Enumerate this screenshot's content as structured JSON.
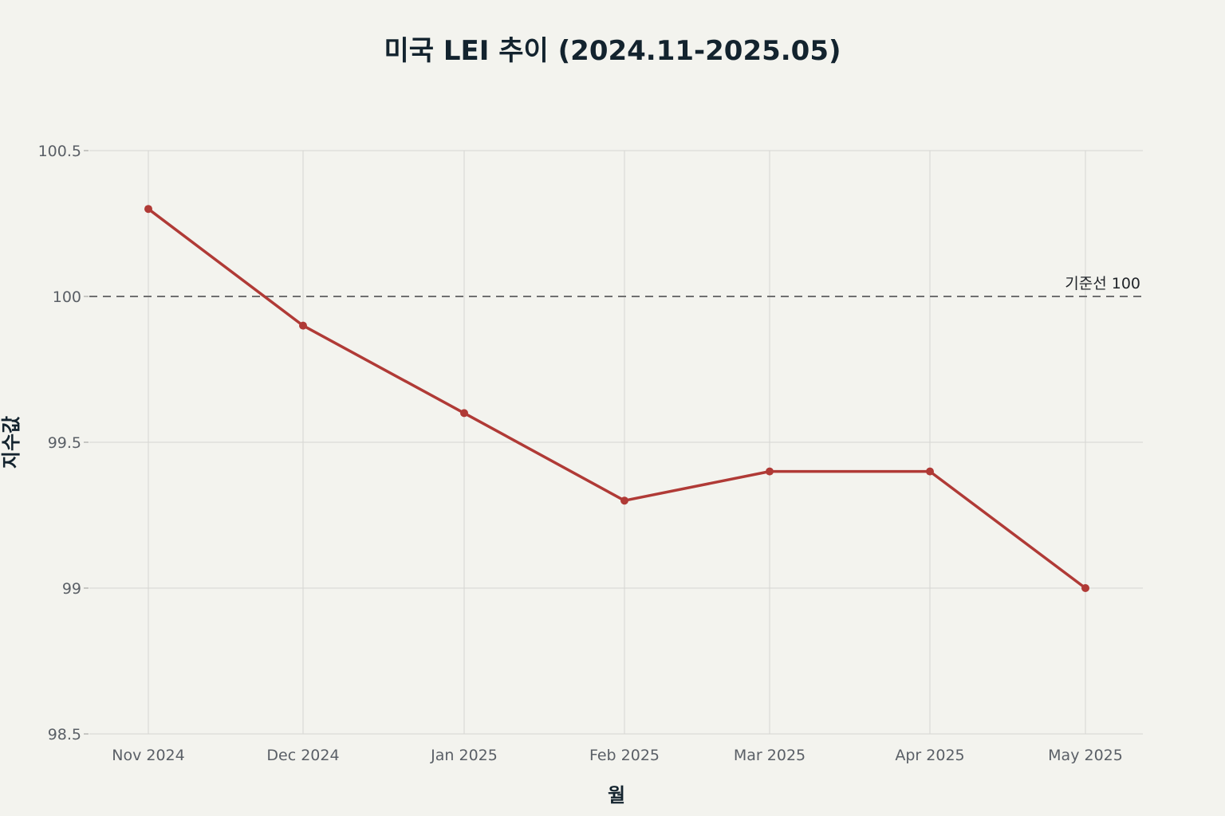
{
  "chart_data": {
    "type": "line",
    "title": "미국 LEI 추이 (2024.11-2025.05)",
    "xlabel": "월",
    "ylabel": "지수값",
    "categories": [
      "Nov 2024",
      "Dec 2024",
      "Jan 2025",
      "Feb 2025",
      "Mar 2025",
      "Apr 2025",
      "May 2025"
    ],
    "x_dates": [
      "2024-11-01",
      "2024-12-01",
      "2025-01-01",
      "2025-02-01",
      "2025-03-01",
      "2025-04-01",
      "2025-05-01"
    ],
    "series": [
      {
        "values": [
          100.3,
          99.9,
          99.6,
          99.3,
          99.4,
          99.4,
          99.0
        ],
        "color": "#b03a36"
      }
    ],
    "ylim": [
      98.5,
      100.5
    ],
    "yticks": [
      98.5,
      99,
      99.5,
      100,
      100.5
    ],
    "ytick_labels": [
      "98.5",
      "99",
      "99.5",
      "100",
      "100.5"
    ],
    "reference_line": {
      "value": 100,
      "label": "기준선 100",
      "color": "#6f6f6f",
      "style": "dashed"
    },
    "grid": true,
    "legend": "none"
  }
}
